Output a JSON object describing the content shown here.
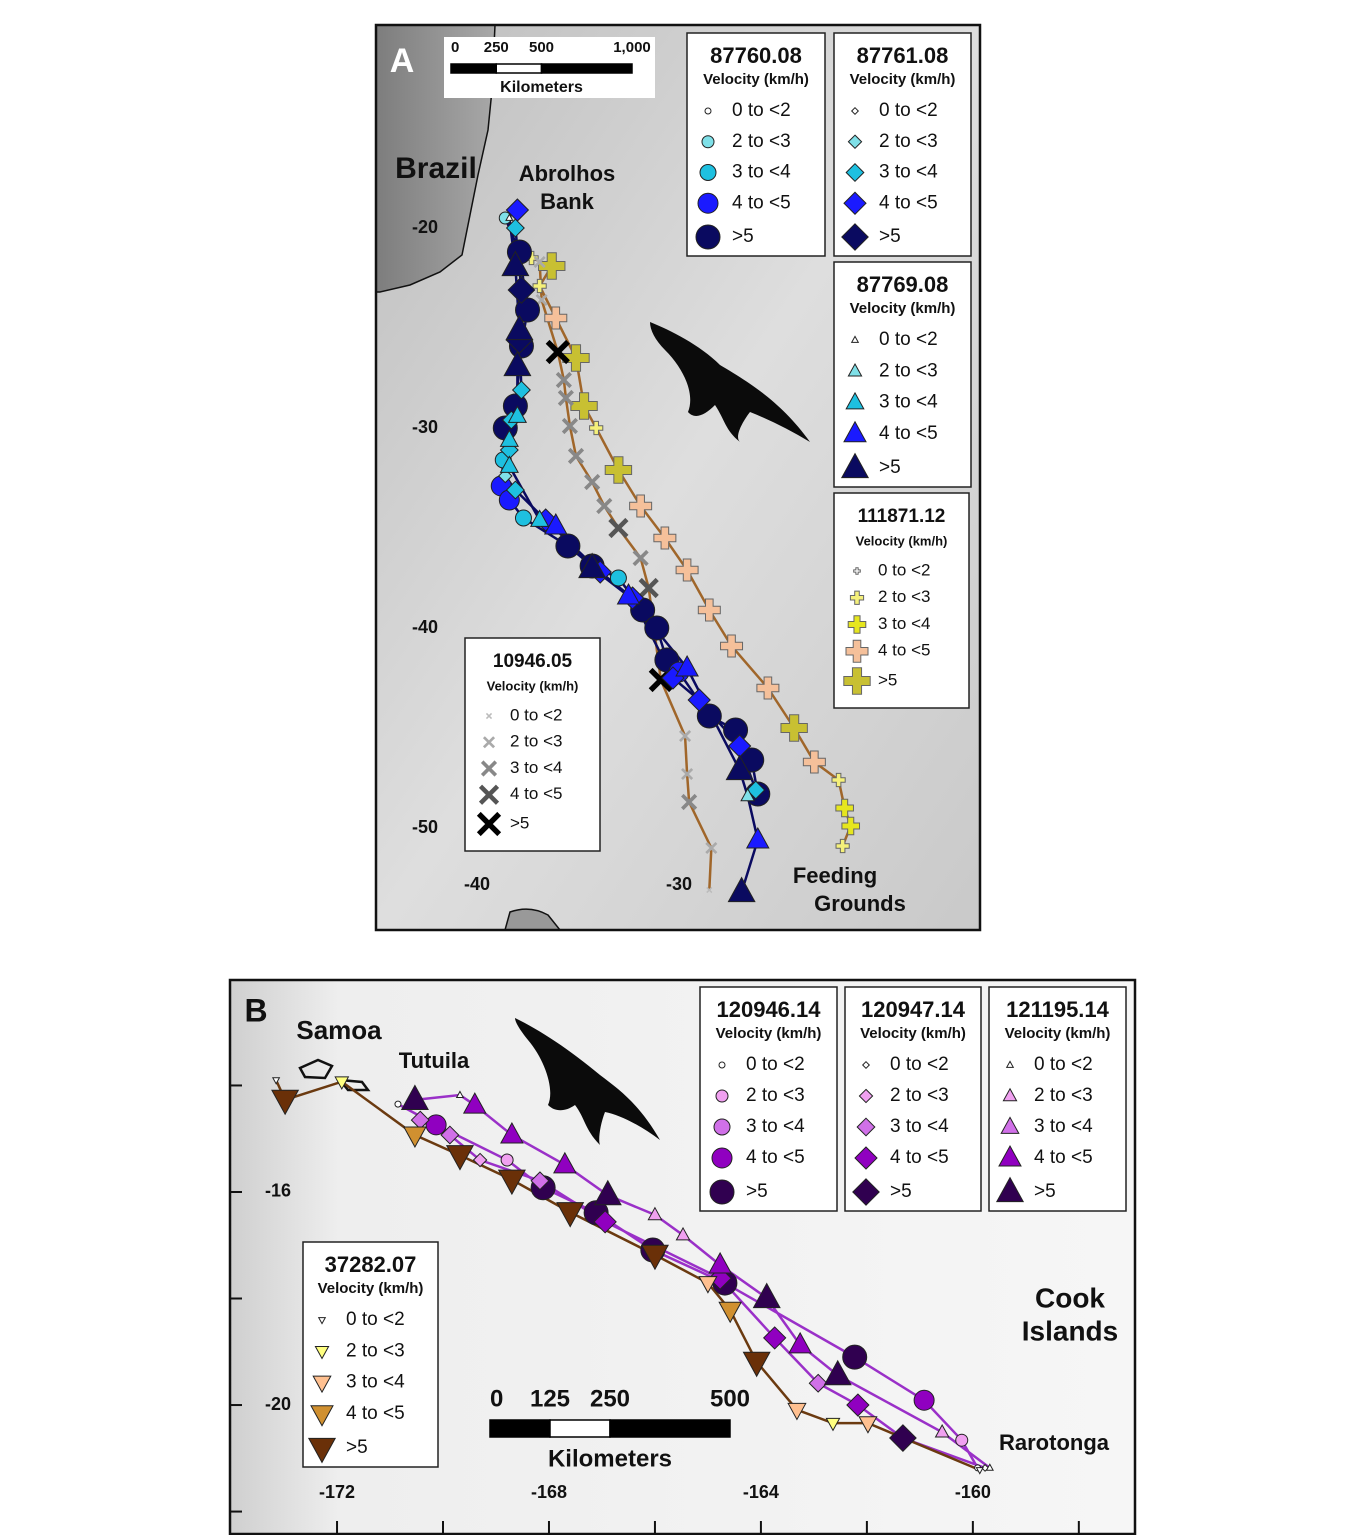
{
  "panels": [
    {
      "label": "A",
      "xlim": [
        -45,
        -15.1
      ],
      "ylim": [
        -55.1,
        -9.85
      ],
      "xticks": [
        -40,
        -30
      ],
      "yticks": [
        -20,
        -30,
        -40,
        -50
      ],
      "places": [
        [
          "Brazil"
        ],
        [
          "Abrolhos",
          "Bank"
        ],
        [
          "Feeding",
          "Grounds"
        ]
      ],
      "scale_bar": {
        "ticks": [
          0,
          250,
          500,
          {
            "value": 1000,
            "label": "1,000"
          }
        ],
        "unit": "Kilometers"
      },
      "legend_subtitle": "Velocity (km/h)",
      "velocity_classes": [
        "0 to <2",
        "2 to <3",
        "3 to <4",
        "4 to <5",
        ">5"
      ],
      "tags": [
        {
          "id": "111871.12",
          "shape": "plus",
          "colors": [
            "#ffffff",
            "#f5f07a",
            "#e6e61e",
            "#f5c09a",
            "#c8c032"
          ],
          "line_color": "#a0662a",
          "points": [
            [
              -37.3,
              -21.5,
              1
            ],
            [
              -36.3,
              -21.9,
              4
            ],
            [
              -36.9,
              -22.9,
              1
            ],
            [
              -36.1,
              -24.5,
              3
            ],
            [
              -35.1,
              -26.5,
              4
            ],
            [
              -34.7,
              -28.9,
              4
            ],
            [
              -34.1,
              -30.0,
              1
            ],
            [
              -33.0,
              -32.1,
              4
            ],
            [
              -31.9,
              -33.9,
              3
            ],
            [
              -30.7,
              -35.5,
              3
            ],
            [
              -29.6,
              -37.1,
              3
            ],
            [
              -28.5,
              -39.1,
              3
            ],
            [
              -27.4,
              -40.9,
              3
            ],
            [
              -25.6,
              -43.0,
              3
            ],
            [
              -24.3,
              -45.0,
              4
            ],
            [
              -23.3,
              -46.7,
              3
            ],
            [
              -22.1,
              -47.6,
              1
            ],
            [
              -21.8,
              -49.0,
              2
            ],
            [
              -21.5,
              -49.9,
              2
            ],
            [
              -21.9,
              -50.9,
              1
            ]
          ]
        },
        {
          "id": "10946.05",
          "shape": "x",
          "colors": [
            "#bbbbbb",
            "#aaaaaa",
            "#888888",
            "#555555",
            "#000000"
          ],
          "line_color": "#a0662a",
          "points": [
            [
              -36.9,
              -21.7,
              1
            ],
            [
              -36.8,
              -23.6,
              1
            ],
            [
              -36.0,
              -26.2,
              4
            ],
            [
              -35.7,
              -27.6,
              2
            ],
            [
              -35.6,
              -28.5,
              2
            ],
            [
              -35.4,
              -29.9,
              2
            ],
            [
              -35.1,
              -31.4,
              2
            ],
            [
              -34.3,
              -32.7,
              2
            ],
            [
              -33.7,
              -33.9,
              2
            ],
            [
              -33.0,
              -35.0,
              3
            ],
            [
              -31.9,
              -36.5,
              2
            ],
            [
              -31.5,
              -38.0,
              3
            ],
            [
              -30.9,
              -42.6,
              4
            ],
            [
              -29.7,
              -45.4,
              1
            ],
            [
              -29.6,
              -47.3,
              1
            ],
            [
              -29.5,
              -48.7,
              2
            ],
            [
              -28.4,
              -51.0,
              1
            ],
            [
              -28.5,
              -53.1,
              0
            ]
          ]
        },
        {
          "id": "87760.08",
          "shape": "circle",
          "colors": [
            "#ffffff",
            "#7fe0e8",
            "#1ec0e0",
            "#1a1aff",
            "#0a0a60"
          ],
          "line_color": "#0a0a60",
          "points": [
            [
              -38.6,
              -19.5,
              1
            ],
            [
              -37.9,
              -21.2,
              4
            ],
            [
              -37.5,
              -24.1,
              4
            ],
            [
              -37.8,
              -25.9,
              4
            ],
            [
              -38.1,
              -28.9,
              4
            ],
            [
              -38.6,
              -30.0,
              4
            ],
            [
              -38.7,
              -31.6,
              2
            ],
            [
              -38.8,
              -32.9,
              3
            ],
            [
              -38.4,
              -33.6,
              3
            ],
            [
              -37.7,
              -34.5,
              2
            ],
            [
              -35.5,
              -35.9,
              4
            ],
            [
              -34.3,
              -36.9,
              4
            ],
            [
              -33.0,
              -37.5,
              2
            ],
            [
              -31.8,
              -39.1,
              4
            ],
            [
              -31.1,
              -40.0,
              4
            ],
            [
              -30.6,
              -41.6,
              4
            ],
            [
              -30.0,
              -42.2,
              3
            ],
            [
              -28.5,
              -44.4,
              4
            ],
            [
              -27.2,
              -45.1,
              4
            ],
            [
              -26.4,
              -46.6,
              4
            ],
            [
              -26.1,
              -48.3,
              4
            ]
          ]
        },
        {
          "id": "87761.08",
          "shape": "diamond",
          "colors": [
            "#ffffff",
            "#7fe0e8",
            "#1ec0e0",
            "#1a1aff",
            "#0a0a60"
          ],
          "line_color": "#0a0a60",
          "points": [
            [
              -38.0,
              -19.1,
              3
            ],
            [
              -38.1,
              -20.0,
              2
            ],
            [
              -37.8,
              -23.1,
              4
            ],
            [
              -37.9,
              -25.6,
              4
            ],
            [
              -37.8,
              -28.1,
              2
            ],
            [
              -38.3,
              -29.6,
              2
            ],
            [
              -38.4,
              -31.1,
              2
            ],
            [
              -38.6,
              -32.4,
              1
            ],
            [
              -38.1,
              -33.1,
              2
            ],
            [
              -36.6,
              -34.6,
              3
            ],
            [
              -33.9,
              -37.2,
              3
            ],
            [
              -32.3,
              -38.5,
              3
            ],
            [
              -30.3,
              -42.5,
              3
            ],
            [
              -29.0,
              -43.6,
              3
            ],
            [
              -27.0,
              -45.9,
              3
            ],
            [
              -26.2,
              -48.1,
              2
            ]
          ]
        },
        {
          "id": "87769.08",
          "shape": "triangle",
          "colors": [
            "#ffffff",
            "#7fe0e8",
            "#1ec0e0",
            "#1a1aff",
            "#0a0a60"
          ],
          "line_color": "#0a0a60",
          "points": [
            [
              -38.4,
              -19.5,
              0
            ],
            [
              -38.1,
              -21.9,
              4
            ],
            [
              -37.9,
              -25.1,
              4
            ],
            [
              -38.0,
              -26.9,
              4
            ],
            [
              -38.0,
              -29.4,
              2
            ],
            [
              -38.4,
              -30.6,
              2
            ],
            [
              -38.4,
              -31.9,
              2
            ],
            [
              -36.9,
              -34.6,
              2
            ],
            [
              -36.1,
              -34.9,
              3
            ],
            [
              -34.3,
              -37.0,
              4
            ],
            [
              -32.5,
              -38.4,
              3
            ],
            [
              -29.6,
              -42.0,
              3
            ],
            [
              -27.0,
              -47.1,
              4
            ],
            [
              -26.6,
              -48.4,
              1
            ],
            [
              -26.1,
              -50.6,
              3
            ],
            [
              -26.9,
              -53.2,
              4
            ]
          ]
        }
      ]
    },
    {
      "label": "B",
      "xlim": [
        -174.02,
        -156.94
      ],
      "ylim": [
        -22.44,
        -12.02
      ],
      "xticks": [
        -172,
        -168,
        -164,
        -160
      ],
      "yticks": [
        -16,
        -20
      ],
      "xminor_ticks": [
        -170,
        -166,
        -162,
        -158
      ],
      "yminor_ticks": [
        -14,
        -18,
        -22
      ],
      "places": [
        [
          "Samoa"
        ],
        [
          "Tutuila"
        ],
        [
          "Cook",
          "Islands"
        ],
        [
          "Rarotonga"
        ]
      ],
      "scale_bar": {
        "ticks": [
          0,
          125,
          250,
          500
        ],
        "unit": "Kilometers"
      },
      "legend_subtitle": "Velocity (km/h)",
      "velocity_classes": [
        "0 to <2",
        "2 to <3",
        "3 to <4",
        "4 to <5",
        ">5"
      ],
      "tags": [
        {
          "id": "120946.14",
          "shape": "circle",
          "colors": [
            "#ffffff",
            "#f0a0f0",
            "#d070e8",
            "#9000c0",
            "#300050"
          ],
          "line_color": "#9a30c8",
          "points": [
            [
              -170.85,
              -14.35,
              0
            ],
            [
              -170.13,
              -14.74,
              3
            ],
            [
              -168.79,
              -15.4,
              1
            ],
            [
              -168.11,
              -15.92,
              4
            ],
            [
              -167.11,
              -16.39,
              4
            ],
            [
              -166.04,
              -17.09,
              4
            ],
            [
              -164.68,
              -17.71,
              4
            ],
            [
              -162.23,
              -19.1,
              4
            ],
            [
              -160.92,
              -19.91,
              3
            ],
            [
              -160.21,
              -20.66,
              1
            ],
            [
              -159.91,
              -21.18,
              0
            ]
          ]
        },
        {
          "id": "120947.14",
          "shape": "diamond",
          "colors": [
            "#ffffff",
            "#f0a0f0",
            "#d070e8",
            "#9000c0",
            "#300050"
          ],
          "line_color": "#9a30c8",
          "points": [
            [
              -170.43,
              -14.65,
              2
            ],
            [
              -169.87,
              -14.93,
              2
            ],
            [
              -169.3,
              -15.4,
              1
            ],
            [
              -168.17,
              -15.79,
              2
            ],
            [
              -166.94,
              -16.56,
              3
            ],
            [
              -164.77,
              -17.62,
              3
            ],
            [
              -163.74,
              -18.74,
              3
            ],
            [
              -162.92,
              -19.59,
              2
            ],
            [
              -162.17,
              -20.0,
              3
            ],
            [
              -161.32,
              -20.62,
              4
            ],
            [
              -159.77,
              -21.18,
              0
            ]
          ]
        },
        {
          "id": "121195.14",
          "shape": "triangle",
          "colors": [
            "#ffffff",
            "#f0a0f0",
            "#d070e8",
            "#9000c0",
            "#300050"
          ],
          "line_color": "#9a30c8",
          "points": [
            [
              -170.53,
              -14.27,
              4
            ],
            [
              -169.68,
              -14.18,
              0
            ],
            [
              -169.4,
              -14.37,
              3
            ],
            [
              -168.7,
              -14.93,
              3
            ],
            [
              -167.7,
              -15.49,
              3
            ],
            [
              -166.89,
              -16.06,
              4
            ],
            [
              -166.0,
              -16.43,
              1
            ],
            [
              -165.47,
              -16.81,
              1
            ],
            [
              -164.77,
              -17.37,
              3
            ],
            [
              -163.89,
              -17.99,
              4
            ],
            [
              -163.26,
              -18.87,
              3
            ],
            [
              -162.55,
              -19.44,
              4
            ],
            [
              -160.58,
              -20.51,
              1
            ],
            [
              -159.68,
              -21.18,
              0
            ]
          ]
        },
        {
          "id": "37282.07",
          "shape": "triangle-down",
          "colors": [
            "#ffffff",
            "#ffff80",
            "#ffc090",
            "#d09030",
            "#6a3008"
          ],
          "line_color": "#6b3a10",
          "points": [
            [
              -173.15,
              -13.9,
              0
            ],
            [
              -172.98,
              -14.27,
              4
            ],
            [
              -171.91,
              -13.93,
              1
            ],
            [
              -170.53,
              -14.93,
              3
            ],
            [
              -169.68,
              -15.31,
              4
            ],
            [
              -168.7,
              -15.77,
              4
            ],
            [
              -167.6,
              -16.38,
              4
            ],
            [
              -166.0,
              -17.18,
              4
            ],
            [
              -165.0,
              -17.71,
              2
            ],
            [
              -164.58,
              -18.22,
              3
            ],
            [
              -164.08,
              -19.19,
              4
            ],
            [
              -163.32,
              -20.09,
              2
            ],
            [
              -162.64,
              -20.34,
              1
            ],
            [
              -161.98,
              -20.34,
              2
            ],
            [
              -159.87,
              -21.22,
              0
            ]
          ]
        }
      ]
    }
  ]
}
